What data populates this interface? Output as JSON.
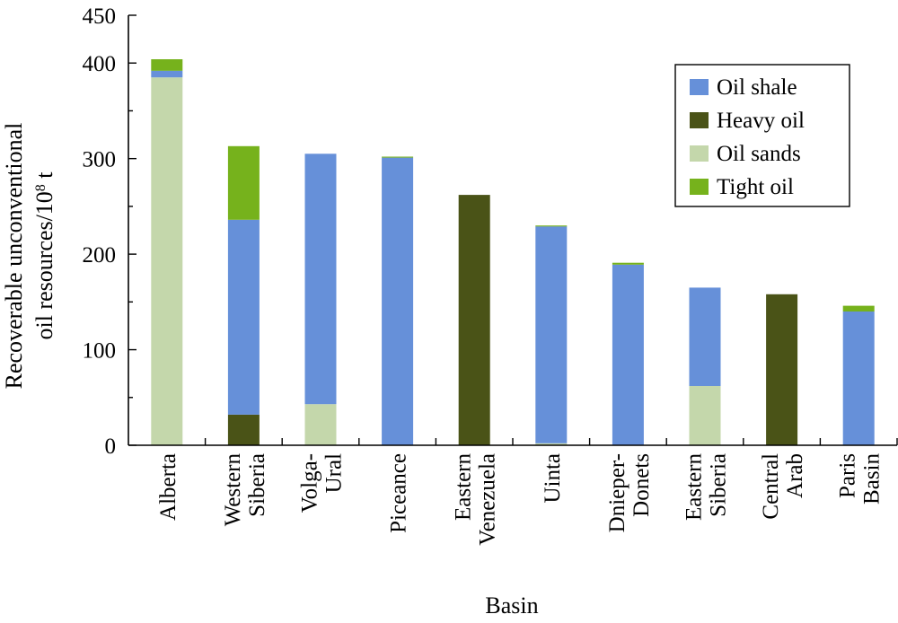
{
  "chart_data": {
    "type": "bar",
    "stacked": true,
    "xlabel": "Basin",
    "ylabel_line1": "Recoverable unconventional",
    "ylabel_line2_prefix": "oil resources/10",
    "ylabel_superscript": "8",
    "ylabel_line2_suffix": " t",
    "ylim": [
      0,
      450
    ],
    "yticks": [
      0,
      100,
      200,
      300,
      400,
      450
    ],
    "grid": false,
    "legend_position": "top-right",
    "categories": [
      [
        "Alberta"
      ],
      [
        "Western",
        "Siberia"
      ],
      [
        "Volga-",
        "Ural"
      ],
      [
        "Piceance"
      ],
      [
        "Eastern",
        "Venezuela"
      ],
      [
        "Uinta"
      ],
      [
        "Dnieper-",
        "Donets"
      ],
      [
        "Eastern",
        "Siberia"
      ],
      [
        "Central",
        "Arab"
      ],
      [
        "Paris",
        "Basin"
      ]
    ],
    "series": [
      {
        "name": "Heavy oil",
        "color": "#4a5317",
        "values": [
          0,
          32,
          0,
          0,
          262,
          0,
          0,
          0,
          158,
          0
        ]
      },
      {
        "name": "Oil sands",
        "color": "#c4d7ab",
        "values": [
          385,
          0,
          43,
          0,
          0,
          2,
          0,
          62,
          0,
          0
        ]
      },
      {
        "name": "Oil shale",
        "color": "#6690d9",
        "values": [
          7,
          204,
          262,
          301,
          0,
          227,
          189,
          103,
          0,
          140
        ]
      },
      {
        "name": "Tight oil",
        "color": "#76b21c",
        "values": [
          12,
          77,
          0,
          1,
          0,
          1,
          2,
          0,
          0,
          6
        ]
      }
    ],
    "legend_order": [
      "Oil shale",
      "Heavy oil",
      "Oil sands",
      "Tight oil"
    ]
  }
}
